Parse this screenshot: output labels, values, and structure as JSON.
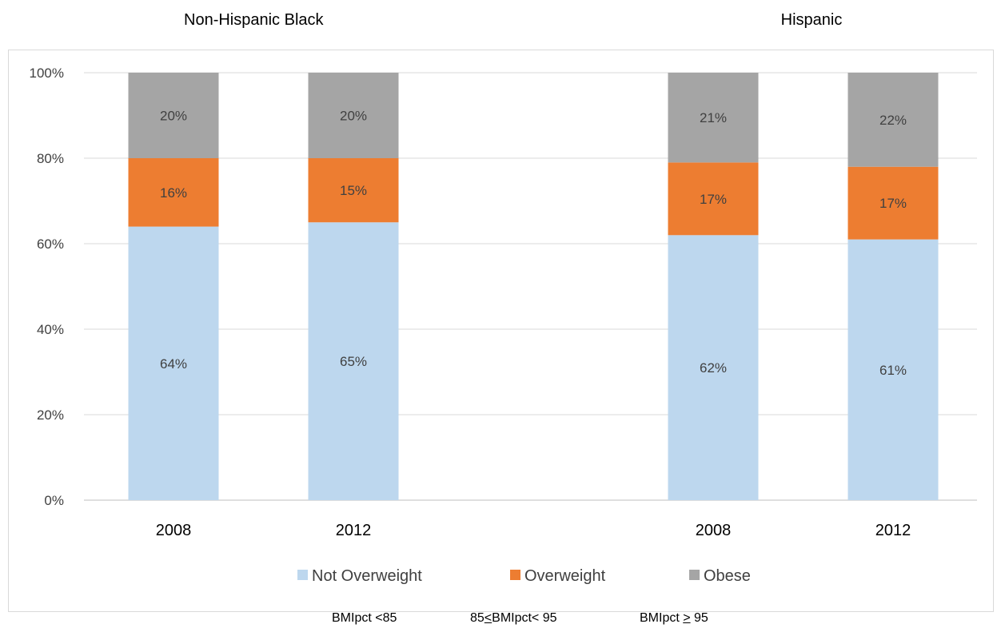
{
  "group_titles": [
    "Non-Hispanic Black",
    "Hispanic"
  ],
  "footnotes": {
    "not_overweight": "BMIpct <85",
    "overweight_pre": "85",
    "overweight_ul": "<",
    "overweight_post": "BMIpct< 95",
    "obese_pre": "BMIpct ",
    "obese_ul": ">",
    "obese_post": " 95"
  },
  "chart_data": {
    "type": "bar",
    "stacked": true,
    "percent_stacked": true,
    "groups": [
      {
        "name": "Non-Hispanic Black",
        "categories": [
          "2008",
          "2012"
        ]
      },
      {
        "name": "Hispanic",
        "categories": [
          "2008",
          "2012"
        ]
      }
    ],
    "categories": [
      "2008",
      "2012",
      "2008",
      "2012"
    ],
    "series": [
      {
        "name": "Not Overweight",
        "color": "#bdd7ee",
        "values": [
          64,
          65,
          62,
          61
        ],
        "labels": [
          "64%",
          "65%",
          "62%",
          "61%"
        ]
      },
      {
        "name": "Overweight",
        "color": "#ed7d31",
        "values": [
          16,
          15,
          17,
          17
        ],
        "labels": [
          "16%",
          "15%",
          "17%",
          "17%"
        ]
      },
      {
        "name": "Obese",
        "color": "#a5a5a5",
        "values": [
          20,
          20,
          21,
          22
        ],
        "labels": [
          "20%",
          "20%",
          "21%",
          "22%"
        ]
      }
    ],
    "ylim": [
      0,
      100
    ],
    "yticks": [
      "0%",
      "20%",
      "40%",
      "60%",
      "80%",
      "100%"
    ],
    "grid": true,
    "legend": "bottom"
  }
}
